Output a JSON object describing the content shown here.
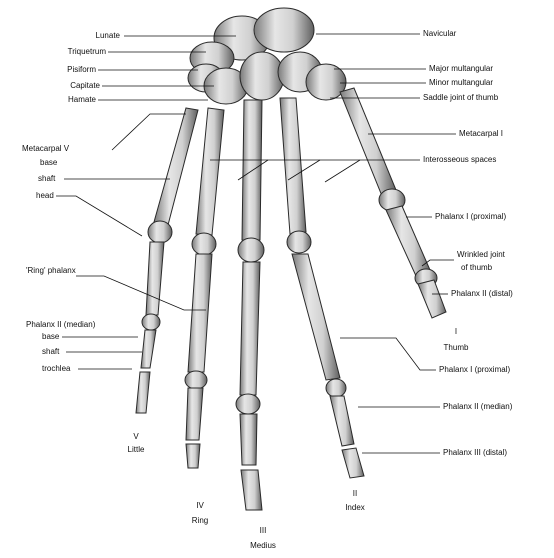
{
  "labels_left": {
    "lunate": "Lunate",
    "triquetrum": "Triquetrum",
    "pisiform": "Pisiform",
    "capitate": "Capitate",
    "hamate": "Hamate",
    "metacarpal_v": "Metacarpal V",
    "base": "base",
    "shaft": "shaft",
    "head": "head",
    "ring_phalanx": "'Ring' phalanx",
    "phalanx_ii_median_left": "Phalanx II (median)",
    "base_2": "base",
    "shaft_2": "shaft",
    "trochlea": "trochlea"
  },
  "labels_right": {
    "navicular": "Navicular",
    "major_multangular": "Major multangular",
    "minor_multangular": "Minor multangular",
    "saddle_joint": "Saddle joint of thumb",
    "metacarpal_i": "Metacarpal I",
    "interosseous": "Interosseous spaces",
    "phalanx_i_proximal_thumb": "Phalanx I (proximal)",
    "wrinkled_joint_1": "Wrinkled joint",
    "wrinkled_joint_2": "of thumb",
    "phalanx_ii_distal": "Phalanx II (distal)",
    "phalanx_i_proximal": "Phalanx I (proximal)",
    "phalanx_ii_median": "Phalanx II (median)",
    "phalanx_iii_distal": "Phalanx III (distal)"
  },
  "digits": {
    "thumb_num": "I",
    "thumb_name": "Thumb",
    "index_num": "II",
    "index_name": "Index",
    "medius_num": "III",
    "medius_name": "Medius",
    "ring_num": "IV",
    "ring_name": "Ring",
    "little_num": "V",
    "little_name": "Little"
  },
  "colors": {
    "bone": "#dcdcdc",
    "bone_shadow": "#6e6e6e",
    "outline": "#2a2a2a",
    "leader": "#111111"
  }
}
